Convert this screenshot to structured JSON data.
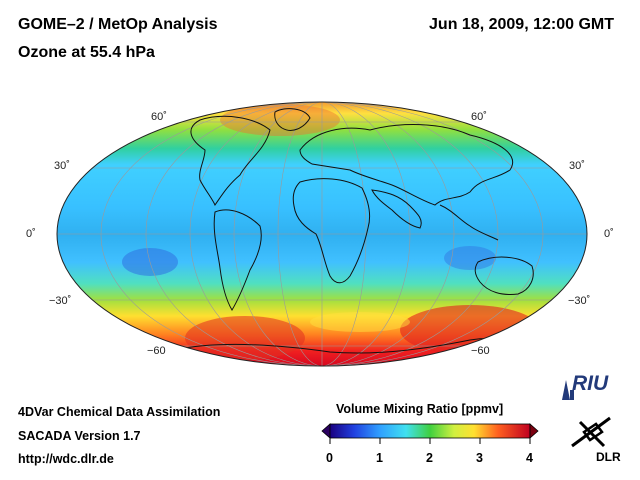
{
  "header": {
    "title": "GOME–2 / MetOp Analysis",
    "subtitle": "Ozone at 55.4 hPa",
    "date": "Jun 18, 2009, 12:00 GMT"
  },
  "map": {
    "projection": "Mollweide",
    "lat_labels": {
      "n60": "60˚",
      "n30": "30˚",
      "eq": "0˚",
      "s30": "−30˚",
      "s60": "−60"
    },
    "colors": {
      "low": "#2f2fc8",
      "mid": "#3fc8ff",
      "green": "#40d040",
      "yellow": "#ffff40",
      "high": "#e01020"
    }
  },
  "colorbar": {
    "title": "Volume Mixing Ratio [ppmv]",
    "min": 0,
    "max": 4,
    "ticks": [
      "0",
      "1",
      "2",
      "3",
      "4"
    ]
  },
  "footer": {
    "line1": "4DVar Chemical Data Assimilation",
    "line2": "SACADA Version 1.7",
    "line3": "http://wdc.dlr.de"
  },
  "logos": {
    "riu": "RIU",
    "dlr": "DLR"
  }
}
